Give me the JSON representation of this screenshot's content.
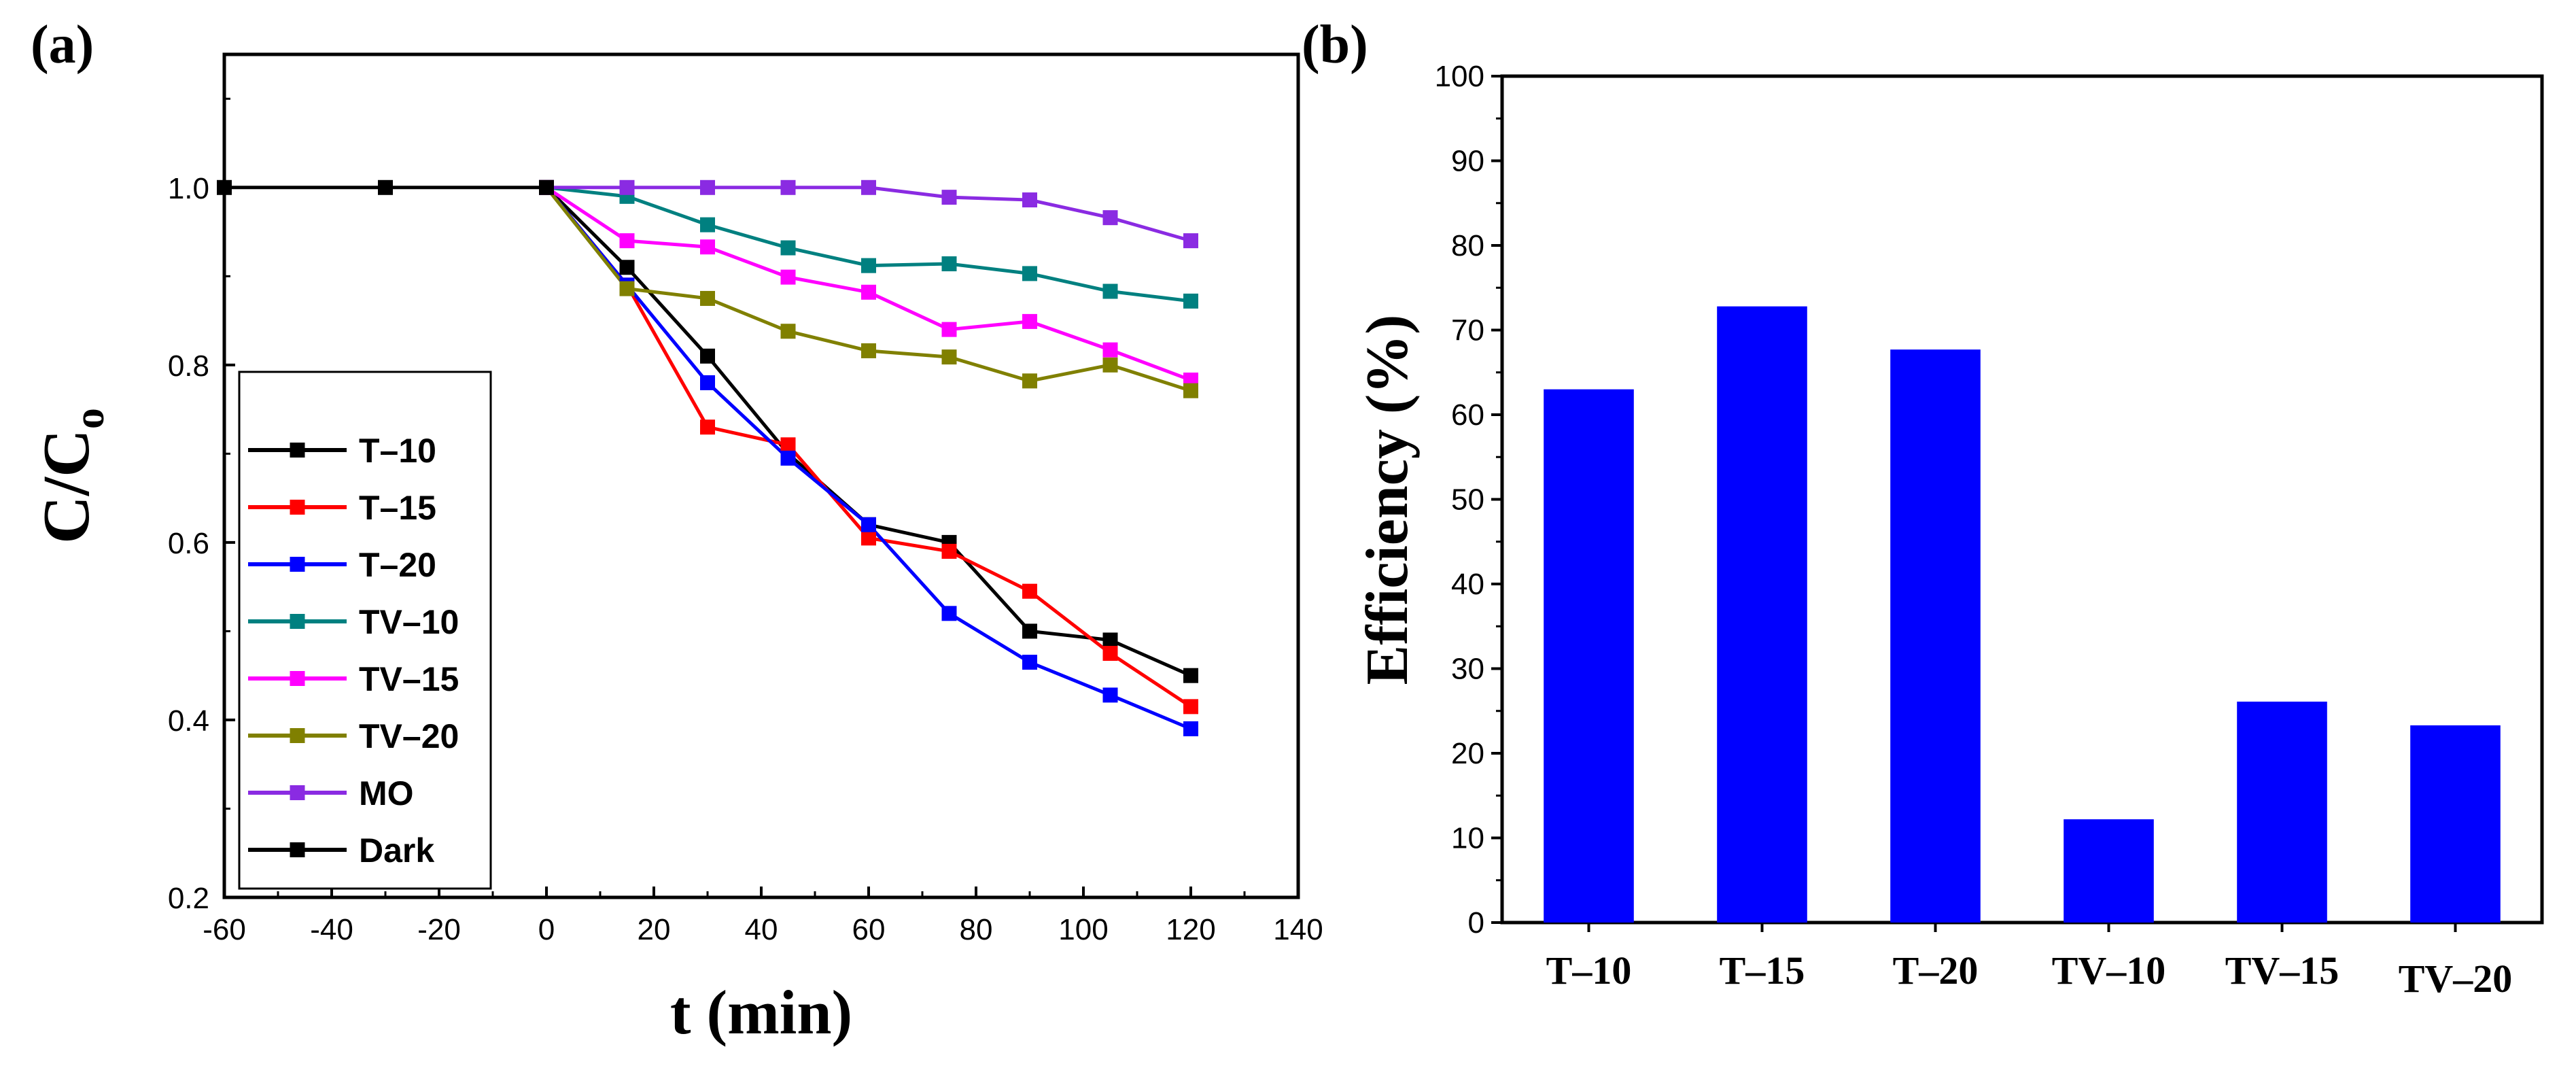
{
  "chart_data": [
    {
      "panel_label": "(a)",
      "type": "line",
      "xlabel": "t (min)",
      "ylabel_main": "C/C",
      "ylabel_sub": "o",
      "xlim": [
        -60,
        140
      ],
      "ylim": [
        0.2,
        1.15
      ],
      "xticks": [
        -60,
        -40,
        -20,
        0,
        20,
        40,
        60,
        80,
        100,
        120,
        140
      ],
      "yticks": [
        0.2,
        0.4,
        0.6,
        0.8,
        1.0
      ],
      "xtick_labels": [
        "-60",
        "-40",
        "-20",
        "0",
        "20",
        "40",
        "60",
        "80",
        "100",
        "120",
        "140"
      ],
      "ytick_labels": [
        "0.2",
        "0.4",
        "0.6",
        "0.8",
        "1.0"
      ],
      "legend_position": "bottom-left",
      "series": [
        {
          "name": "T–10",
          "color": "#000000",
          "x": [
            0,
            15,
            30,
            45,
            60,
            75,
            90,
            105,
            120
          ],
          "y": [
            1.0,
            0.91,
            0.81,
            0.7,
            0.62,
            0.6,
            0.5,
            0.49,
            0.45
          ]
        },
        {
          "name": "T–15",
          "color": "#ff0000",
          "x": [
            0,
            15,
            30,
            45,
            60,
            75,
            90,
            105,
            120
          ],
          "y": [
            1.0,
            0.89,
            0.73,
            0.71,
            0.605,
            0.59,
            0.545,
            0.475,
            0.415
          ]
        },
        {
          "name": "T–20",
          "color": "#0000ff",
          "x": [
            0,
            15,
            30,
            45,
            60,
            75,
            90,
            105,
            120
          ],
          "y": [
            1.0,
            0.89,
            0.78,
            0.695,
            0.62,
            0.52,
            0.465,
            0.428,
            0.39
          ]
        },
        {
          "name": "TV–10",
          "color": "#008080",
          "x": [
            0,
            15,
            30,
            45,
            60,
            75,
            90,
            105,
            120
          ],
          "y": [
            1.0,
            0.99,
            0.958,
            0.932,
            0.912,
            0.914,
            0.903,
            0.883,
            0.872
          ]
        },
        {
          "name": "TV–15",
          "color": "#ff00ff",
          "x": [
            0,
            15,
            30,
            45,
            60,
            75,
            90,
            105,
            120
          ],
          "y": [
            1.0,
            0.94,
            0.933,
            0.899,
            0.882,
            0.84,
            0.849,
            0.817,
            0.783
          ]
        },
        {
          "name": "TV–20",
          "color": "#808000",
          "x": [
            0,
            15,
            30,
            45,
            60,
            75,
            90,
            105,
            120
          ],
          "y": [
            1.0,
            0.886,
            0.875,
            0.838,
            0.816,
            0.809,
            0.782,
            0.8,
            0.771
          ]
        },
        {
          "name": "MO",
          "color": "#8a2be2",
          "x": [
            0,
            15,
            30,
            45,
            60,
            75,
            90,
            105,
            120
          ],
          "y": [
            1.0,
            1.0,
            1.0,
            1.0,
            1.0,
            0.989,
            0.986,
            0.966,
            0.94
          ]
        },
        {
          "name": "Dark",
          "color": "#000000",
          "x": [
            -60,
            -30,
            0
          ],
          "y": [
            1.0,
            1.0,
            1.0
          ]
        }
      ]
    },
    {
      "panel_label": "(b)",
      "type": "bar",
      "ylabel": "Efficiency (%)",
      "xlabel": "",
      "ylim": [
        0,
        100
      ],
      "yticks": [
        0,
        10,
        20,
        30,
        40,
        50,
        60,
        70,
        80,
        90,
        100
      ],
      "ytick_labels": [
        "0",
        "10",
        "20",
        "30",
        "40",
        "50",
        "60",
        "70",
        "80",
        "90",
        "100"
      ],
      "categories": [
        "T–10",
        "T–15",
        "T–20",
        "TV–10",
        "TV–15",
        "TV–20"
      ],
      "values": [
        63,
        72.8,
        67.7,
        12.2,
        26.1,
        23.3
      ],
      "bar_color": "#0000ff"
    }
  ]
}
